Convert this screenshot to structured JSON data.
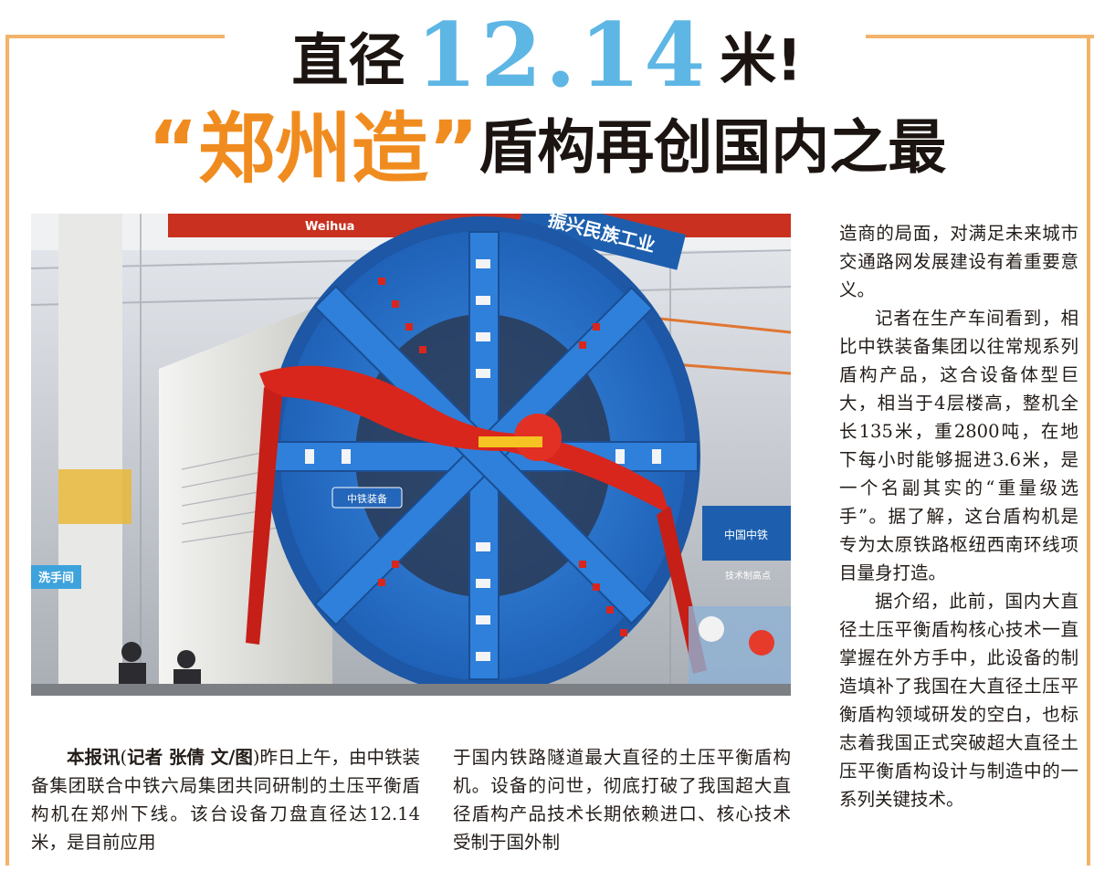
{
  "headline": {
    "line1_before": "直径",
    "line1_number": "12.14",
    "line1_after": "米!",
    "line2_quote": "“郑州造”",
    "line2_rest": "盾构再创国内之最"
  },
  "photo": {
    "banner_text": "振兴民族工业",
    "left_sign": "Weihua",
    "cutterhead_badge": "中铁装备",
    "right_sign": "中国中铁",
    "side_sign": "技术制高点",
    "bottom_sign": "洗手间"
  },
  "article": {
    "lead": "本报讯",
    "byline_open": "(",
    "byline_reporter_label": "记者 张倩 文/图",
    "byline_close": ")",
    "col1_text": "昨日上午，由中铁装备集团联合中铁六局集团共同研制的土压平衡盾构机在郑州下线。该台设备刀盘直径达12.14米，是目前应用",
    "col2_text": "于国内铁路隧道最大直径的土压平衡盾构机。设备的问世，彻底打破了我国超大直径盾构产品技术长期依赖进口、核心技术受制于国外制",
    "col3_p1": "造商的局面，对满足未来城市交通路网发展建设有着重要意义。",
    "col3_p2": "记者在生产车间看到，相比中铁装备集团以往常规系列盾构产品，这合设备体型巨大，相当于4层楼高，整机全长135米，重2800吨，在地下每小时能够掘进3.6米，是一个名副其实的“重量级选手”。据了解，这台盾构机是专为太原铁路枢纽西南环线项目量身打造。",
    "col3_p3": "据介绍，此前，国内大直径土压平衡盾构核心技术一直掌握在外方手中，此设备的制造填补了我国在大直径土压平衡盾构领域研发的空白，也标志着我国正式突破超大直径土压平衡盾构设计与制造中的一系列关键技术。"
  },
  "colors": {
    "frame": "#f2b36b",
    "headline_number": "#5eb6e4",
    "headline_quote": "#f08c1f",
    "cutterhead": "#2f7fd6",
    "ribbon": "#d8261c"
  }
}
